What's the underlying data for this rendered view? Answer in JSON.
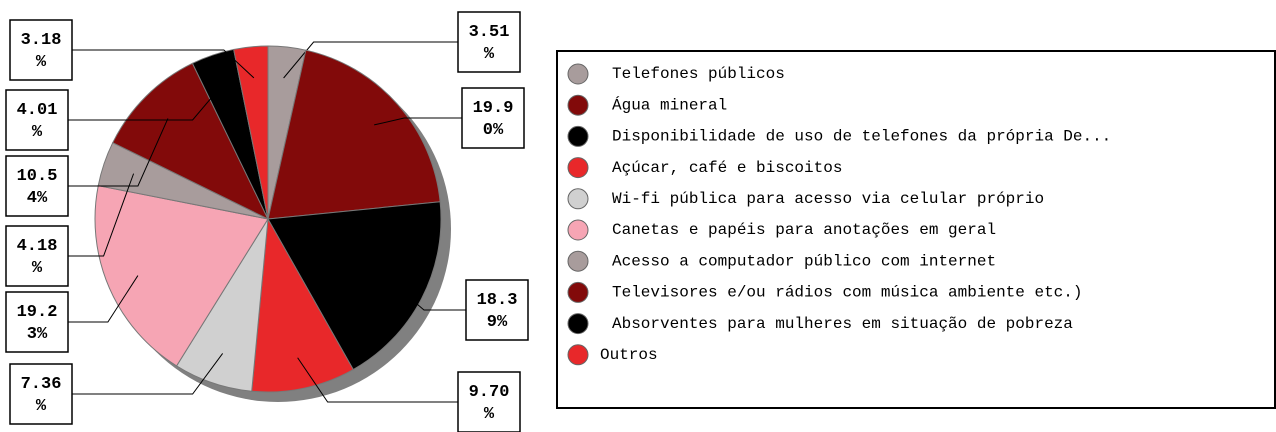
{
  "chart_data": {
    "type": "pie",
    "categories": [
      "Telefones públicos",
      "Água mineral",
      "Disponibilidade de uso de telefones da própria De...",
      "Açúcar, café e biscoitos",
      "Wi-fi pública para acesso via celular próprio",
      "Canetas e papéis para anotações em geral",
      "Acesso a computador público com internet",
      "Televisores e/ou rádios com música ambiente etc.)",
      "Absorventes para mulheres em situação de pobreza",
      "Outros"
    ],
    "values": [
      3.51,
      19.9,
      18.39,
      9.7,
      7.36,
      19.23,
      4.18,
      10.54,
      4.01,
      3.18
    ],
    "value_labels": [
      "3.51%",
      "19.90%",
      "18.39%",
      "9.70%",
      "7.36%",
      "19.23%",
      "4.18%",
      "10.54%",
      "4.01%",
      "3.18%"
    ],
    "colors": [
      "#a89c9c",
      "#820a0a",
      "#000000",
      "#e8282a",
      "#d0d0d0",
      "#f6a5b4",
      "#a89c9c",
      "#820a0a",
      "#000000",
      "#e8282a"
    ],
    "legend": "right"
  }
}
